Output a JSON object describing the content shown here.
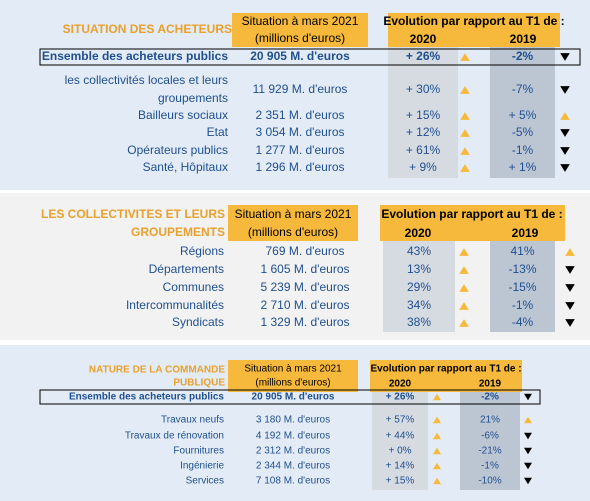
{
  "sections": [
    {
      "title": [
        "SITUATION DES ACHETEURS"
      ],
      "situation": [
        "Situation à mars 2021",
        "(millions d'euros)"
      ],
      "evolution": "Evolution par rapport au T1 de :",
      "year1": "2020",
      "year2": "2019",
      "rows": [
        {
          "label": [
            "Ensemble des acheteurs publics"
          ],
          "value": "20 905 M. d'euros",
          "v1": "+ 26%",
          "v2": "-2%"
        },
        {
          "label": [
            "les collectivités locales et leurs",
            "groupements"
          ],
          "value": "11 929 M. d'euros",
          "v1": "+ 30%",
          "v2": "-7%"
        },
        {
          "label": [
            "Bailleurs sociaux"
          ],
          "value": "2 351 M. d'euros",
          "v1": "+ 15%",
          "v2": "+ 5%"
        },
        {
          "label": [
            "Etat"
          ],
          "value": "3 054 M. d'euros",
          "v1": "+ 12%",
          "v2": "-5%"
        },
        {
          "label": [
            "Opérateurs publics"
          ],
          "value": "1 277 M. d'euros",
          "v1": "+ 61%",
          "v2": "-1%"
        },
        {
          "label": [
            "Santé, Hôpitaux"
          ],
          "value": "1 296 M. d'euros",
          "v1": "+ 9%",
          "v2": "+ 1%"
        }
      ]
    },
    {
      "title": [
        "LES COLLECTIVITES ET LEURS",
        "GROUPEMENTS"
      ],
      "situation": [
        "Situation à mars 2021",
        "(millions d'euros)"
      ],
      "evolution": "Evolution par rapport au T1 de :",
      "year1": "2020",
      "year2": "2019",
      "rows": [
        {
          "label": [
            "Régions"
          ],
          "value": "769 M. d'euros",
          "v1": "43%",
          "v2": "41%"
        },
        {
          "label": [
            "Départements"
          ],
          "value": "1 605 M. d'euros",
          "v1": "13%",
          "v2": "-13%"
        },
        {
          "label": [
            "Communes"
          ],
          "value": "5 239 M. d'euros",
          "v1": "29%",
          "v2": "-15%"
        },
        {
          "label": [
            "Intercommunalités"
          ],
          "value": "2 710 M. d'euros",
          "v1": "34%",
          "v2": "-1%"
        },
        {
          "label": [
            "Syndicats"
          ],
          "value": "1 329 M. d'euros",
          "v1": "38%",
          "v2": "-4%"
        }
      ]
    },
    {
      "title": [
        "NATURE DE LA COMMANDE",
        "PUBLIQUE"
      ],
      "situation": [
        "Situation à mars 2021",
        "(millions d'euros)"
      ],
      "evolution": "Evolution par rapport au T1 de :",
      "year1": "2020",
      "year2": "2019",
      "rows": [
        {
          "label": [
            "Ensemble des acheteurs publics"
          ],
          "value": "20 905 M. d'euros",
          "v1": "+ 26%",
          "v2": "-2%"
        },
        {
          "label": [
            "Travaux neufs"
          ],
          "value": "3 180 M. d'euros",
          "v1": "+ 57%",
          "v2": "21%"
        },
        {
          "label": [
            "Travaux de rénovation"
          ],
          "value": "4 192 M. d'euros",
          "v1": "+ 44%",
          "v2": "-6%"
        },
        {
          "label": [
            "Fournitures"
          ],
          "value": "2 312 M. d'euros",
          "v1": "+ 0%",
          "v2": "-21%"
        },
        {
          "label": [
            "Ingénierie"
          ],
          "value": "2 344 M. d'euros",
          "v1": "+ 14%",
          "v2": "-1%"
        },
        {
          "label": [
            "Services"
          ],
          "value": "7 108 M. d'euros",
          "v1": "+ 15%",
          "v2": "-10%"
        }
      ]
    }
  ]
}
